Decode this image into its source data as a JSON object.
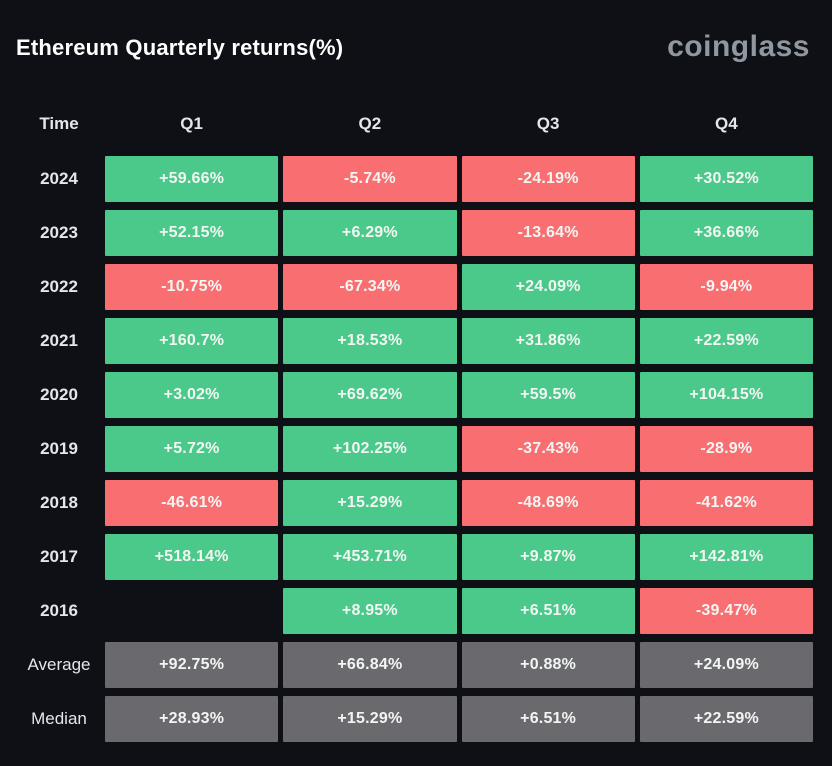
{
  "header": {
    "title": "Ethereum Quarterly returns(%)",
    "brand": "coinglass"
  },
  "colors": {
    "background": "#0e1016",
    "positive": "#4bc98a",
    "negative": "#f96e71",
    "summary": "#6a696e",
    "cell_text": "#f2f6f3",
    "label_text": "#e3e7ec",
    "brand_text": "#9097a0",
    "title_text": "#ffffff"
  },
  "table": {
    "columns": [
      "Time",
      "Q1",
      "Q2",
      "Q3",
      "Q4"
    ],
    "rows": [
      {
        "label": "2024",
        "kind": "year",
        "cells": [
          {
            "value": "+59.66%",
            "tone": "positive"
          },
          {
            "value": "-5.74%",
            "tone": "negative"
          },
          {
            "value": "-24.19%",
            "tone": "negative"
          },
          {
            "value": "+30.52%",
            "tone": "positive"
          }
        ]
      },
      {
        "label": "2023",
        "kind": "year",
        "cells": [
          {
            "value": "+52.15%",
            "tone": "positive"
          },
          {
            "value": "+6.29%",
            "tone": "positive"
          },
          {
            "value": "-13.64%",
            "tone": "negative"
          },
          {
            "value": "+36.66%",
            "tone": "positive"
          }
        ]
      },
      {
        "label": "2022",
        "kind": "year",
        "cells": [
          {
            "value": "-10.75%",
            "tone": "negative"
          },
          {
            "value": "-67.34%",
            "tone": "negative"
          },
          {
            "value": "+24.09%",
            "tone": "positive"
          },
          {
            "value": "-9.94%",
            "tone": "negative"
          }
        ]
      },
      {
        "label": "2021",
        "kind": "year",
        "cells": [
          {
            "value": "+160.7%",
            "tone": "positive"
          },
          {
            "value": "+18.53%",
            "tone": "positive"
          },
          {
            "value": "+31.86%",
            "tone": "positive"
          },
          {
            "value": "+22.59%",
            "tone": "positive"
          }
        ]
      },
      {
        "label": "2020",
        "kind": "year",
        "cells": [
          {
            "value": "+3.02%",
            "tone": "positive"
          },
          {
            "value": "+69.62%",
            "tone": "positive"
          },
          {
            "value": "+59.5%",
            "tone": "positive"
          },
          {
            "value": "+104.15%",
            "tone": "positive"
          }
        ]
      },
      {
        "label": "2019",
        "kind": "year",
        "cells": [
          {
            "value": "+5.72%",
            "tone": "positive"
          },
          {
            "value": "+102.25%",
            "tone": "positive"
          },
          {
            "value": "-37.43%",
            "tone": "negative"
          },
          {
            "value": "-28.9%",
            "tone": "negative"
          }
        ]
      },
      {
        "label": "2018",
        "kind": "year",
        "cells": [
          {
            "value": "-46.61%",
            "tone": "negative"
          },
          {
            "value": "+15.29%",
            "tone": "positive"
          },
          {
            "value": "-48.69%",
            "tone": "negative"
          },
          {
            "value": "-41.62%",
            "tone": "negative"
          }
        ]
      },
      {
        "label": "2017",
        "kind": "year",
        "cells": [
          {
            "value": "+518.14%",
            "tone": "positive"
          },
          {
            "value": "+453.71%",
            "tone": "positive"
          },
          {
            "value": "+9.87%",
            "tone": "positive"
          },
          {
            "value": "+142.81%",
            "tone": "positive"
          }
        ]
      },
      {
        "label": "2016",
        "kind": "year",
        "cells": [
          {
            "value": "",
            "tone": "empty"
          },
          {
            "value": "+8.95%",
            "tone": "positive"
          },
          {
            "value": "+6.51%",
            "tone": "positive"
          },
          {
            "value": "-39.47%",
            "tone": "negative"
          }
        ]
      },
      {
        "label": "Average",
        "kind": "summary",
        "cells": [
          {
            "value": "+92.75%",
            "tone": "summary"
          },
          {
            "value": "+66.84%",
            "tone": "summary"
          },
          {
            "value": "+0.88%",
            "tone": "summary"
          },
          {
            "value": "+24.09%",
            "tone": "summary"
          }
        ]
      },
      {
        "label": "Median",
        "kind": "summary",
        "cells": [
          {
            "value": "+28.93%",
            "tone": "summary"
          },
          {
            "value": "+15.29%",
            "tone": "summary"
          },
          {
            "value": "+6.51%",
            "tone": "summary"
          },
          {
            "value": "+22.59%",
            "tone": "summary"
          }
        ]
      }
    ]
  },
  "chart_data": {
    "type": "table",
    "title": "Ethereum Quarterly returns(%)",
    "unit": "%",
    "columns": [
      "Q1",
      "Q2",
      "Q3",
      "Q4"
    ],
    "row_labels": [
      "2024",
      "2023",
      "2022",
      "2021",
      "2020",
      "2019",
      "2018",
      "2017",
      "2016",
      "Average",
      "Median"
    ],
    "values": [
      [
        59.66,
        -5.74,
        -24.19,
        30.52
      ],
      [
        52.15,
        6.29,
        -13.64,
        36.66
      ],
      [
        -10.75,
        -67.34,
        24.09,
        -9.94
      ],
      [
        160.7,
        18.53,
        31.86,
        22.59
      ],
      [
        3.02,
        69.62,
        59.5,
        104.15
      ],
      [
        5.72,
        102.25,
        -37.43,
        -28.9
      ],
      [
        -46.61,
        15.29,
        -48.69,
        -41.62
      ],
      [
        518.14,
        453.71,
        9.87,
        142.81
      ],
      [
        null,
        8.95,
        6.51,
        -39.47
      ],
      [
        92.75,
        66.84,
        0.88,
        24.09
      ],
      [
        28.93,
        15.29,
        6.51,
        22.59
      ]
    ],
    "color_coding": {
      "positive": "#4bc98a",
      "negative": "#f96e71",
      "summary_rows": "#6a696e"
    },
    "legend": "none",
    "grid": "off"
  }
}
